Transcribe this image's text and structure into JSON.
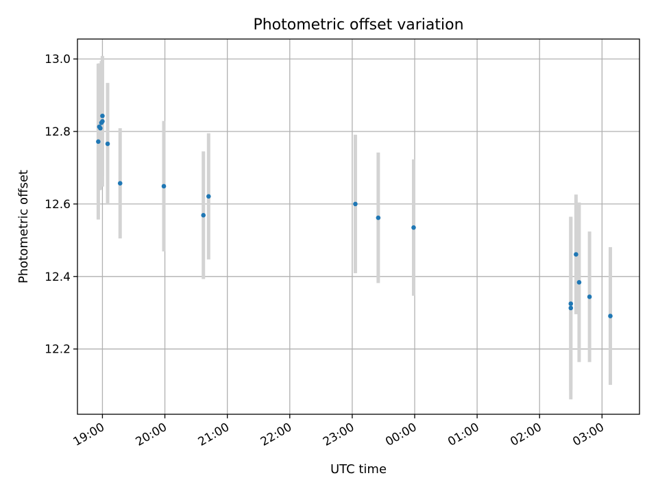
{
  "chart_data": {
    "type": "scatter",
    "title": "Photometric offset variation",
    "xlabel": "UTC time",
    "ylabel": "Photometric offset",
    "x_ticks": [
      "19:00",
      "20:00",
      "21:00",
      "22:00",
      "23:00",
      "00:00",
      "01:00",
      "02:00",
      "03:00"
    ],
    "y_ticks": [
      "12.2",
      "12.4",
      "12.6",
      "12.8",
      "13.0"
    ],
    "xlim": [
      "18:36",
      "03:36"
    ],
    "ylim": [
      12.02,
      13.055
    ],
    "grid": true,
    "point_color": "#1f77b4",
    "errorbar_color": "#d3d3d3",
    "points": [
      {
        "t": "18:56",
        "y": 12.772,
        "err": 0.215
      },
      {
        "t": "18:57",
        "y": 12.813,
        "err": 0.175
      },
      {
        "t": "18:58",
        "y": 12.809,
        "err": 0.17
      },
      {
        "t": "18:59",
        "y": 12.824,
        "err": 0.17
      },
      {
        "t": "19:00",
        "y": 12.828,
        "err": 0.18
      },
      {
        "t": "19:00",
        "y": 12.843,
        "err": 0.165
      },
      {
        "t": "19:05",
        "y": 12.766,
        "err": 0.168
      },
      {
        "t": "19:17",
        "y": 12.657,
        "err": 0.152
      },
      {
        "t": "19:59",
        "y": 12.649,
        "err": 0.18
      },
      {
        "t": "20:37",
        "y": 12.569,
        "err": 0.176
      },
      {
        "t": "20:42",
        "y": 12.621,
        "err": 0.174
      },
      {
        "t": "23:03",
        "y": 12.6,
        "err": 0.191
      },
      {
        "t": "23:25",
        "y": 12.562,
        "err": 0.18
      },
      {
        "t": "23:59",
        "y": 12.535,
        "err": 0.188
      },
      {
        "t": "02:30",
        "y": 12.313,
        "err": 0.252
      },
      {
        "t": "02:30",
        "y": 12.325,
        "err": 0.238
      },
      {
        "t": "02:35",
        "y": 12.461,
        "err": 0.165
      },
      {
        "t": "02:38",
        "y": 12.384,
        "err": 0.22
      },
      {
        "t": "02:48",
        "y": 12.344,
        "err": 0.18
      },
      {
        "t": "03:08",
        "y": 12.291,
        "err": 0.19
      }
    ]
  }
}
